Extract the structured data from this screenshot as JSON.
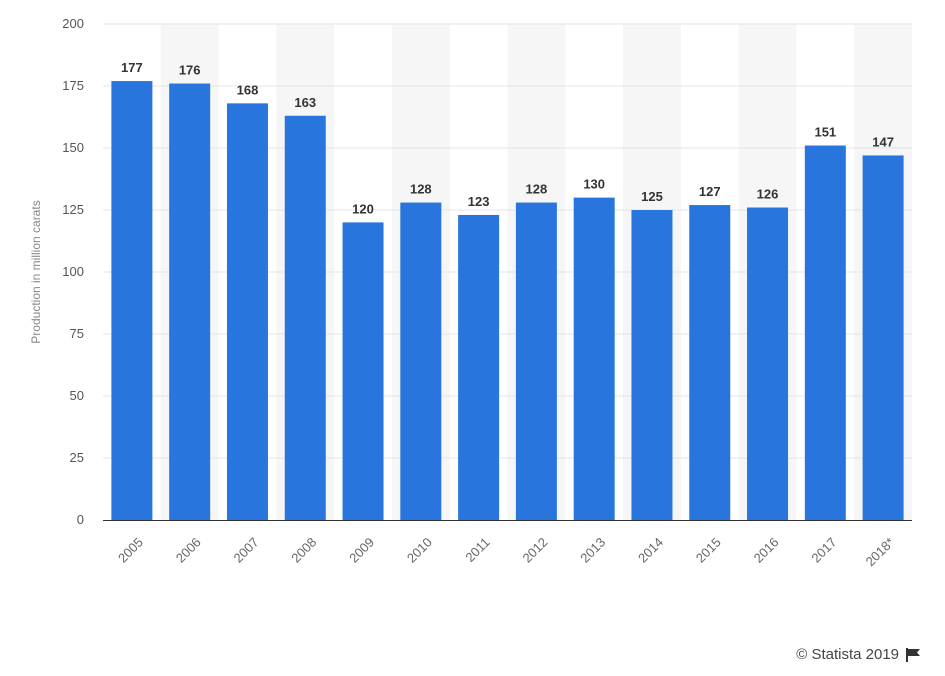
{
  "chart_data": {
    "type": "bar",
    "categories": [
      "2005",
      "2006",
      "2007",
      "2008",
      "2009",
      "2010",
      "2011",
      "2012",
      "2013",
      "2014",
      "2015",
      "2016",
      "2017",
      "2018*"
    ],
    "values": [
      177,
      176,
      168,
      163,
      120,
      128,
      123,
      128,
      130,
      125,
      127,
      126,
      151,
      147
    ],
    "ylabel": "Production in million carats",
    "ylim": [
      0,
      200
    ],
    "yticks": [
      0,
      25,
      50,
      75,
      100,
      125,
      150,
      175,
      200
    ],
    "grid": true,
    "bar_color": "#2876dd",
    "alt_band_color": "#f6f6f6"
  },
  "footer": {
    "credit": "© Statista 2019",
    "icon": "flag-icon"
  }
}
